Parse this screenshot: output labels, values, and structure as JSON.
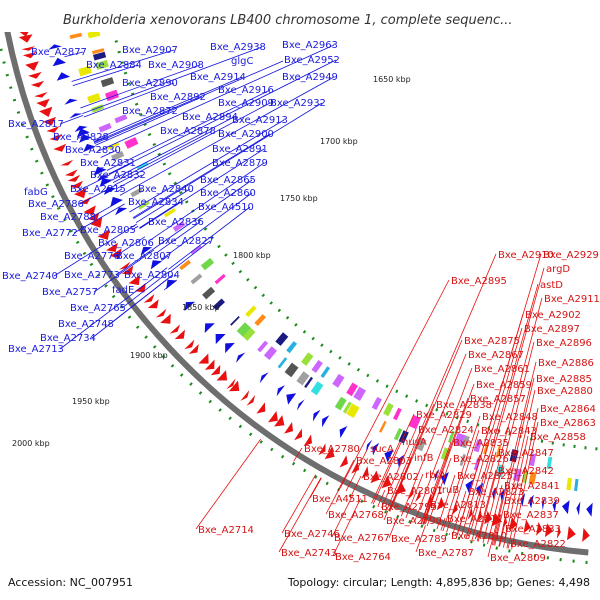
{
  "title": "Burkholderia xenovorans LB400 chromosome 1, complete sequenc...",
  "footer": {
    "accession": "Accession: NC_007951",
    "summary": "Topology: circular; Length: 4,895,836 bp; Genes: 4,498"
  },
  "colors": {
    "backbone": "#6e6e6e",
    "forward_cds": "#1010e0",
    "reverse_cds": "#e81010",
    "blue_labels": "#1a1adf",
    "red_labels": "#d41414",
    "tick_marks": "#1e8a1e"
  },
  "scale_ticks": [
    "1650 kbp",
    "1700 kbp",
    "1750 kbp",
    "1800 kbp",
    "1850 kbp",
    "1900 kbp",
    "1950 kbp",
    "2000 kbp"
  ],
  "blue_labels": [
    "Bxe_A2877",
    "Bxe_A2907",
    "Bxe_A2938",
    "Bxe_A2963",
    "Bxe_A2884",
    "Bxe_A2908",
    "glgC",
    "Bxe_A2952",
    "Bxe_A2949",
    "Bxe_A2890",
    "Bxe_A2914",
    "Bxe_A2916",
    "Bxe_A2892",
    "Bxe_A2909",
    "Bxe_A2932",
    "Bxe_A2872",
    "Bxe_A2894",
    "Bxe_A2913",
    "Bxe_A2817",
    "Bxe_A2878",
    "Bxe_A2900",
    "Bxe_A2828",
    "Bxe_A2891",
    "Bxe_A2830",
    "Bxe_A2879",
    "Bxe_A2831",
    "Bxe_A2832",
    "Bxe_A2865",
    "fabG",
    "Bxe_A2815",
    "Bxe_A2840",
    "Bxe_A2860",
    "Bxe_A2786",
    "Bxe_A2834",
    "Bxe_A4510",
    "Bxe_A2788",
    "Bxe_A2836",
    "Bxe_A2805",
    "Bxe_A2772",
    "Bxe_A2827",
    "Bxe_A2806",
    "Bxe_A2776",
    "Bxe_A2807",
    "Bxe_A2740",
    "Bxe_A2773",
    "Bxe_A2804",
    "fadE",
    "Bxe_A2757",
    "Bxe_A2765",
    "Bxe_A2748",
    "Bxe_A2734",
    "Bxe_A2713"
  ],
  "red_labels": [
    "Bxe_A2910",
    "Bxe_A2929",
    "argD",
    "Bxe_A2895",
    "astD",
    "Bxe_A2911",
    "Bxe_A2902",
    "Bxe_A2897",
    "Bxe_A2875",
    "Bxe_A2896",
    "Bxe_A2867",
    "Bxe_A2886",
    "Bxe_A2861",
    "Bxe_A2885",
    "Bxe_A2859",
    "Bxe_A2880",
    "Bxe_A2857",
    "Bxe_A2864",
    "Bxe_A2838",
    "Bxe_A2848",
    "Bxe_A2863",
    "Bxe_A2829",
    "Bxe_A2843",
    "Bxe_A2858",
    "Bxe_A2824",
    "Bxe_A2835",
    "nusA",
    "Bxe_A2847",
    "Bxe_A2780",
    "sucA",
    "Bxe_A2826",
    "Bxe_A2803",
    "infB",
    "Bxe_A2842",
    "rbfA",
    "Bxe_A2825",
    "Bxe_A2802",
    "truB",
    "Bxe_A2841",
    "Bxe_A2801",
    "Bxe_A2823",
    "Bxe_A4511",
    "Bxe_A2813",
    "Bxe_A2839",
    "Bxe_A2795",
    "Bxe_A2768",
    "Bxe_A2837",
    "Bxe_A2790",
    "Bxe_A2811",
    "Bxe_A2714",
    "Bxe_A2833",
    "Bxe_A2746",
    "Bxe_A2767",
    "Bxe_A2789",
    "Bxe_A2810",
    "Bxe_A2822",
    "Bxe_A2743",
    "Bxe_A2764",
    "Bxe_A2787",
    "Bxe_A2809"
  ]
}
